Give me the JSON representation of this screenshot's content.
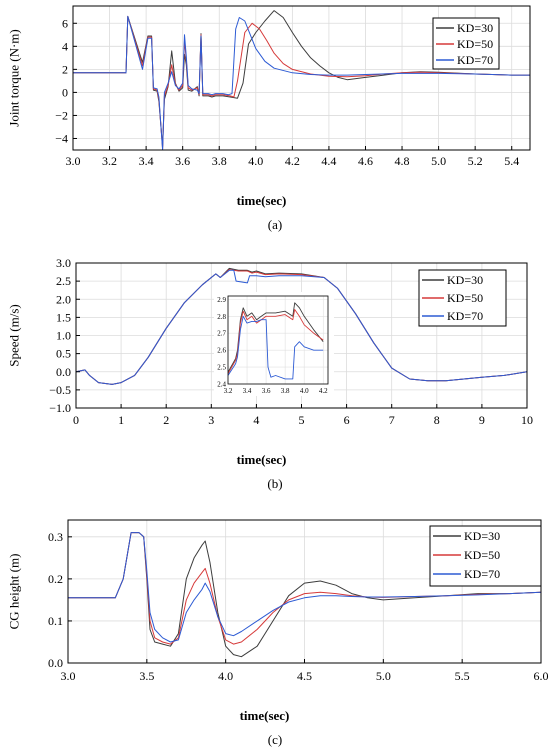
{
  "chart_data": [
    {
      "type": "line",
      "panel_label": "(a)",
      "xlabel": "time(sec)",
      "ylabel": "Joint torque (N·m)",
      "xlim": [
        3.0,
        5.5
      ],
      "ylim": [
        -5,
        7.5
      ],
      "xticks": [
        3.0,
        3.2,
        3.4,
        3.6,
        3.8,
        4.0,
        4.2,
        4.4,
        4.6,
        4.8,
        5.0,
        5.2,
        5.4
      ],
      "xtick_labels": [
        "3.0",
        "3.2",
        "3.4",
        "3.6",
        "3.8",
        "4.0",
        "4.2",
        "4.4",
        "4.6",
        "4.8",
        "5.0",
        "5.2",
        "5.4"
      ],
      "yticks": [
        -4,
        -2,
        0,
        2,
        4,
        6
      ],
      "ytick_labels": [
        "−4",
        "−2",
        "0",
        "2",
        "4",
        "6"
      ],
      "grid": true,
      "legend_position": "top-right",
      "series": [
        {
          "name": "KD=30",
          "color": "#3d3d3d",
          "x": [
            3.0,
            3.29,
            3.3,
            3.38,
            3.41,
            3.43,
            3.44,
            3.46,
            3.47,
            3.49,
            3.5,
            3.52,
            3.54,
            3.56,
            3.58,
            3.6,
            3.61,
            3.62,
            3.63,
            3.65,
            3.68,
            3.69,
            3.7,
            3.71,
            3.74,
            3.76,
            3.78,
            3.82,
            3.86,
            3.9,
            3.93,
            3.96,
            4.0,
            4.05,
            4.1,
            4.15,
            4.2,
            4.25,
            4.3,
            4.35,
            4.4,
            4.45,
            4.5,
            4.6,
            4.7,
            4.8,
            4.9,
            5.0,
            5.2,
            5.4,
            5.5
          ],
          "y": [
            1.7,
            1.7,
            6.6,
            2.6,
            4.9,
            4.9,
            0.2,
            0.1,
            -0.8,
            -4.7,
            -0.6,
            0.5,
            3.6,
            0.8,
            0.1,
            0.4,
            3.3,
            2.4,
            0.2,
            0.1,
            0.5,
            -0.3,
            5.1,
            -0.3,
            -0.3,
            -0.4,
            -0.3,
            -0.3,
            -0.4,
            -0.5,
            0.8,
            4.2,
            5.2,
            6.2,
            7.1,
            6.5,
            5.2,
            4.0,
            3.0,
            2.3,
            1.7,
            1.3,
            1.1,
            1.3,
            1.5,
            1.7,
            1.8,
            1.75,
            1.6,
            1.5,
            1.5
          ]
        },
        {
          "name": "KD=50",
          "color": "#d63a3a",
          "x": [
            3.0,
            3.29,
            3.3,
            3.38,
            3.41,
            3.43,
            3.44,
            3.46,
            3.47,
            3.49,
            3.5,
            3.52,
            3.54,
            3.56,
            3.58,
            3.6,
            3.61,
            3.62,
            3.63,
            3.65,
            3.68,
            3.69,
            3.7,
            3.71,
            3.74,
            3.76,
            3.78,
            3.82,
            3.86,
            3.88,
            3.9,
            3.94,
            3.98,
            4.02,
            4.06,
            4.1,
            4.15,
            4.2,
            4.3,
            4.4,
            4.5,
            4.6,
            4.7,
            4.8,
            4.9,
            5.0,
            5.2,
            5.4,
            5.5
          ],
          "y": [
            1.7,
            1.7,
            6.6,
            2.3,
            4.8,
            4.8,
            0.3,
            0.2,
            -0.6,
            -4.9,
            -0.3,
            0.6,
            2.4,
            0.7,
            0.2,
            0.6,
            4.5,
            2.8,
            0.4,
            0.2,
            0.4,
            -0.2,
            5.0,
            -0.2,
            -0.2,
            -0.3,
            -0.2,
            -0.2,
            -0.3,
            -0.4,
            1.0,
            5.2,
            6.0,
            5.5,
            4.5,
            3.4,
            2.5,
            2.0,
            1.6,
            1.4,
            1.35,
            1.45,
            1.6,
            1.7,
            1.75,
            1.7,
            1.6,
            1.5,
            1.5
          ]
        },
        {
          "name": "KD=70",
          "color": "#2d5bd4",
          "x": [
            3.0,
            3.29,
            3.3,
            3.38,
            3.41,
            3.43,
            3.44,
            3.46,
            3.47,
            3.49,
            3.5,
            3.52,
            3.54,
            3.56,
            3.58,
            3.6,
            3.61,
            3.62,
            3.63,
            3.65,
            3.68,
            3.69,
            3.7,
            3.71,
            3.74,
            3.76,
            3.78,
            3.82,
            3.85,
            3.87,
            3.89,
            3.91,
            3.94,
            3.97,
            4.0,
            4.05,
            4.1,
            4.2,
            4.3,
            4.4,
            4.5,
            4.6,
            4.8,
            5.0,
            5.2,
            5.4,
            5.5
          ],
          "y": [
            1.7,
            1.7,
            6.6,
            2.0,
            4.7,
            4.7,
            0.4,
            0.3,
            -0.4,
            -5.0,
            0.0,
            0.8,
            1.8,
            0.6,
            0.3,
            0.8,
            5.0,
            3.1,
            0.6,
            0.3,
            0.2,
            -0.1,
            4.9,
            -0.1,
            -0.1,
            -0.2,
            -0.1,
            -0.1,
            -0.2,
            -0.1,
            5.5,
            6.5,
            6.2,
            5.0,
            3.8,
            2.7,
            2.1,
            1.7,
            1.55,
            1.5,
            1.5,
            1.55,
            1.65,
            1.65,
            1.6,
            1.5,
            1.5
          ]
        }
      ]
    },
    {
      "type": "line",
      "panel_label": "(b)",
      "xlabel": "time(sec)",
      "ylabel": "Speed (m/s)",
      "xlim": [
        0,
        10
      ],
      "ylim": [
        -1.0,
        3.0
      ],
      "xticks": [
        0,
        1,
        2,
        3,
        4,
        5,
        6,
        7,
        8,
        9,
        10
      ],
      "xtick_labels": [
        "0",
        "1",
        "2",
        "3",
        "4",
        "5",
        "6",
        "7",
        "8",
        "9",
        "10"
      ],
      "yticks": [
        -1.0,
        -0.5,
        0.0,
        0.5,
        1.0,
        1.5,
        2.0,
        2.5,
        3.0
      ],
      "ytick_labels": [
        "−1.0",
        "−0.5",
        "0.0",
        "0.5",
        "1.0",
        "1.5",
        "2.0",
        "2.5",
        "3.0"
      ],
      "grid": true,
      "legend_position": "right",
      "series": [
        {
          "name": "KD=30",
          "color": "#3d3d3d",
          "x": [
            0,
            0.2,
            0.3,
            0.5,
            0.8,
            1.0,
            1.3,
            1.6,
            2.0,
            2.4,
            2.8,
            3.1,
            3.2,
            3.4,
            3.6,
            3.8,
            3.9,
            4.0,
            4.2,
            4.5,
            5.0,
            5.5,
            5.8,
            6.2,
            6.6,
            7.0,
            7.4,
            7.8,
            8.2,
            8.6,
            9.0,
            9.5,
            10
          ],
          "y": [
            0.0,
            0.05,
            -0.1,
            -0.3,
            -0.35,
            -0.3,
            -0.1,
            0.4,
            1.2,
            1.9,
            2.4,
            2.7,
            2.6,
            2.85,
            2.8,
            2.8,
            2.75,
            2.78,
            2.7,
            2.72,
            2.7,
            2.6,
            2.3,
            1.6,
            0.8,
            0.1,
            -0.2,
            -0.25,
            -0.25,
            -0.2,
            -0.15,
            -0.1,
            0.0
          ]
        },
        {
          "name": "KD=50",
          "color": "#d63a3a",
          "x": [
            0,
            0.2,
            0.3,
            0.5,
            0.8,
            1.0,
            1.3,
            1.6,
            2.0,
            2.4,
            2.8,
            3.1,
            3.2,
            3.4,
            3.6,
            3.8,
            3.9,
            4.0,
            4.2,
            4.5,
            5.0,
            5.5,
            5.8,
            6.2,
            6.6,
            7.0,
            7.4,
            7.8,
            8.2,
            8.6,
            9.0,
            9.5,
            10
          ],
          "y": [
            0.0,
            0.05,
            -0.1,
            -0.3,
            -0.35,
            -0.3,
            -0.1,
            0.4,
            1.2,
            1.9,
            2.4,
            2.7,
            2.6,
            2.82,
            2.78,
            2.78,
            2.72,
            2.75,
            2.68,
            2.7,
            2.68,
            2.6,
            2.3,
            1.6,
            0.8,
            0.1,
            -0.2,
            -0.25,
            -0.25,
            -0.2,
            -0.15,
            -0.1,
            0.0
          ]
        },
        {
          "name": "KD=70",
          "color": "#2d5bd4",
          "x": [
            0,
            0.2,
            0.3,
            0.5,
            0.8,
            1.0,
            1.3,
            1.6,
            2.0,
            2.4,
            2.8,
            3.1,
            3.2,
            3.4,
            3.5,
            3.55,
            3.8,
            3.85,
            4.0,
            4.2,
            4.5,
            5.0,
            5.5,
            5.8,
            6.2,
            6.6,
            7.0,
            7.4,
            7.8,
            8.2,
            8.6,
            9.0,
            9.5,
            10
          ],
          "y": [
            0.0,
            0.05,
            -0.1,
            -0.3,
            -0.35,
            -0.3,
            -0.1,
            0.4,
            1.2,
            1.9,
            2.4,
            2.7,
            2.6,
            2.8,
            2.8,
            2.5,
            2.45,
            2.65,
            2.65,
            2.62,
            2.65,
            2.65,
            2.6,
            2.3,
            1.6,
            0.8,
            0.1,
            -0.2,
            -0.25,
            -0.25,
            -0.2,
            -0.15,
            -0.1,
            0.0
          ]
        }
      ],
      "inset": {
        "xlim": [
          3.2,
          4.25
        ],
        "ylim": [
          2.4,
          2.92
        ],
        "xticks": [
          3.2,
          3.4,
          3.6,
          3.8,
          4.0,
          4.2
        ],
        "xtick_labels": [
          "3.2",
          "3.4",
          "3.6",
          "3.8",
          "4.0",
          "4.2"
        ],
        "yticks": [
          2.4,
          2.5,
          2.6,
          2.7,
          2.8,
          2.9
        ],
        "ytick_labels": [
          "2.4",
          "2.5",
          "2.6",
          "2.7",
          "2.8",
          "2.9"
        ],
        "series": [
          {
            "name": "KD=30",
            "color": "#3d3d3d",
            "x": [
              3.2,
              3.28,
              3.3,
              3.33,
              3.36,
              3.4,
              3.45,
              3.5,
              3.55,
              3.6,
              3.7,
              3.8,
              3.88,
              3.9,
              3.95,
              4.0,
              4.1,
              4.2
            ],
            "y": [
              2.47,
              2.55,
              2.6,
              2.78,
              2.85,
              2.8,
              2.82,
              2.78,
              2.8,
              2.82,
              2.82,
              2.83,
              2.8,
              2.88,
              2.85,
              2.8,
              2.72,
              2.65
            ]
          },
          {
            "name": "KD=50",
            "color": "#d63a3a",
            "x": [
              3.2,
              3.28,
              3.3,
              3.33,
              3.36,
              3.4,
              3.45,
              3.5,
              3.55,
              3.6,
              3.7,
              3.8,
              3.88,
              3.9,
              3.95,
              4.0,
              4.1,
              4.2
            ],
            "y": [
              2.46,
              2.54,
              2.58,
              2.76,
              2.83,
              2.78,
              2.8,
              2.76,
              2.78,
              2.8,
              2.8,
              2.81,
              2.78,
              2.84,
              2.8,
              2.75,
              2.7,
              2.66
            ]
          },
          {
            "name": "KD=70",
            "color": "#2d5bd4",
            "x": [
              3.2,
              3.28,
              3.3,
              3.33,
              3.36,
              3.4,
              3.45,
              3.5,
              3.55,
              3.6,
              3.62,
              3.65,
              3.7,
              3.8,
              3.88,
              3.9,
              3.95,
              4.0,
              4.1,
              4.2
            ],
            "y": [
              2.45,
              2.52,
              2.56,
              2.72,
              2.8,
              2.76,
              2.77,
              2.77,
              2.78,
              2.78,
              2.5,
              2.44,
              2.45,
              2.43,
              2.43,
              2.62,
              2.65,
              2.62,
              2.6,
              2.6
            ]
          }
        ]
      }
    },
    {
      "type": "line",
      "panel_label": "(c)",
      "xlabel": "time(sec)",
      "ylabel": "CG height (m)",
      "xlim": [
        3.0,
        6.0
      ],
      "ylim": [
        0.0,
        0.34
      ],
      "xticks": [
        3.0,
        3.5,
        4.0,
        4.5,
        5.0,
        5.5,
        6.0
      ],
      "xtick_labels": [
        "3.0",
        "3.5",
        "4.0",
        "4.5",
        "5.0",
        "5.5",
        "6.0"
      ],
      "yticks": [
        0.0,
        0.1,
        0.2,
        0.3
      ],
      "ytick_labels": [
        "0.0",
        "0.1",
        "0.2",
        "0.3"
      ],
      "grid": true,
      "legend_position": "top-right",
      "series": [
        {
          "name": "KD=30",
          "color": "#3d3d3d",
          "x": [
            3.0,
            3.3,
            3.35,
            3.4,
            3.42,
            3.45,
            3.48,
            3.5,
            3.52,
            3.55,
            3.6,
            3.65,
            3.7,
            3.75,
            3.8,
            3.85,
            3.87,
            3.9,
            3.95,
            4.0,
            4.05,
            4.1,
            4.2,
            4.3,
            4.4,
            4.5,
            4.6,
            4.7,
            4.8,
            4.9,
            5.0,
            5.2,
            5.4,
            5.6,
            5.8,
            6.0
          ],
          "y": [
            0.155,
            0.155,
            0.2,
            0.31,
            0.31,
            0.31,
            0.3,
            0.2,
            0.08,
            0.05,
            0.045,
            0.04,
            0.07,
            0.2,
            0.25,
            0.28,
            0.29,
            0.24,
            0.12,
            0.04,
            0.02,
            0.015,
            0.04,
            0.1,
            0.16,
            0.19,
            0.195,
            0.185,
            0.165,
            0.155,
            0.15,
            0.155,
            0.16,
            0.165,
            0.165,
            0.168
          ]
        },
        {
          "name": "KD=50",
          "color": "#d63a3a",
          "x": [
            3.0,
            3.3,
            3.35,
            3.4,
            3.42,
            3.45,
            3.48,
            3.5,
            3.52,
            3.55,
            3.6,
            3.65,
            3.7,
            3.75,
            3.8,
            3.85,
            3.87,
            3.9,
            3.95,
            4.0,
            4.05,
            4.1,
            4.2,
            4.3,
            4.4,
            4.5,
            4.6,
            4.7,
            4.8,
            4.9,
            5.0,
            5.2,
            5.4,
            5.6,
            5.8,
            6.0
          ],
          "y": [
            0.155,
            0.155,
            0.2,
            0.31,
            0.31,
            0.31,
            0.3,
            0.21,
            0.1,
            0.06,
            0.05,
            0.045,
            0.06,
            0.15,
            0.19,
            0.215,
            0.225,
            0.19,
            0.11,
            0.055,
            0.045,
            0.05,
            0.08,
            0.12,
            0.15,
            0.165,
            0.168,
            0.165,
            0.16,
            0.157,
            0.156,
            0.158,
            0.16,
            0.163,
            0.165,
            0.168
          ]
        },
        {
          "name": "KD=70",
          "color": "#2d5bd4",
          "x": [
            3.0,
            3.3,
            3.35,
            3.4,
            3.42,
            3.45,
            3.48,
            3.5,
            3.52,
            3.55,
            3.6,
            3.65,
            3.7,
            3.75,
            3.8,
            3.85,
            3.87,
            3.9,
            3.95,
            4.0,
            4.05,
            4.1,
            4.2,
            4.3,
            4.4,
            4.5,
            4.6,
            4.7,
            4.8,
            4.9,
            5.0,
            5.2,
            5.4,
            5.6,
            5.8,
            6.0
          ],
          "y": [
            0.155,
            0.155,
            0.2,
            0.31,
            0.31,
            0.31,
            0.3,
            0.22,
            0.12,
            0.08,
            0.06,
            0.05,
            0.055,
            0.12,
            0.15,
            0.175,
            0.19,
            0.17,
            0.11,
            0.07,
            0.065,
            0.075,
            0.1,
            0.125,
            0.145,
            0.155,
            0.16,
            0.16,
            0.158,
            0.157,
            0.157,
            0.158,
            0.16,
            0.162,
            0.165,
            0.168
          ]
        }
      ]
    }
  ]
}
